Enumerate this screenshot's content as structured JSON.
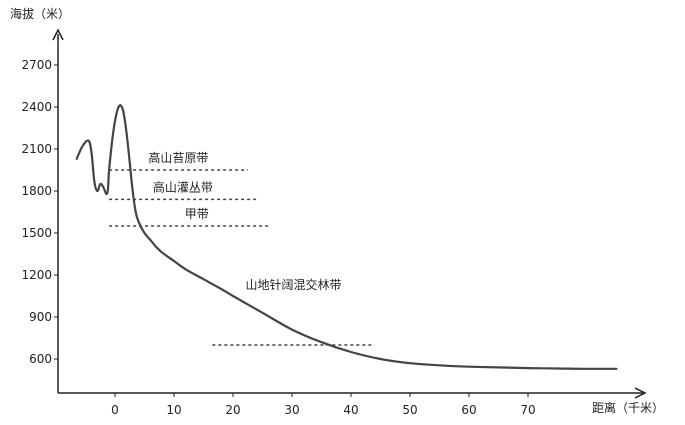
{
  "chart_data": {
    "type": "line",
    "title": "",
    "ylabel": "海拔（米）",
    "xlabel": "距离（千米）",
    "ylim": [
      350,
      3000
    ],
    "xlim": [
      -9,
      95
    ],
    "y_ticks": [
      600,
      900,
      1200,
      1500,
      1800,
      2100,
      2400,
      2700
    ],
    "x_ticks": [
      0,
      10,
      20,
      30,
      40,
      50,
      60,
      70
    ],
    "series": [
      {
        "x": [
          -6.5,
          -5.5,
          -4.5,
          -4,
          -3.5,
          -3,
          -2.5,
          -2,
          -1.5,
          -1.2,
          -1,
          -0.5,
          0,
          0.5,
          1,
          1.5,
          2,
          2.5,
          3,
          3.5,
          4,
          5,
          6,
          7,
          8,
          10,
          12,
          15,
          18,
          20,
          25,
          30,
          35,
          40,
          45,
          50,
          55,
          60,
          65,
          70,
          75,
          80,
          85
        ],
        "y": [
          2030,
          2120,
          2160,
          2080,
          1870,
          1800,
          1850,
          1830,
          1780,
          1810,
          1950,
          2150,
          2300,
          2390,
          2410,
          2350,
          2200,
          2000,
          1800,
          1650,
          1580,
          1500,
          1450,
          1400,
          1360,
          1300,
          1240,
          1170,
          1100,
          1050,
          930,
          810,
          720,
          650,
          600,
          570,
          555,
          545,
          540,
          535,
          532,
          530,
          530
        ]
      }
    ],
    "vegetation_belts": [
      {
        "label": "高山苔原带",
        "boundary_y": 1950,
        "line_x": [
          -1,
          22.5
        ]
      },
      {
        "label": "高山灌丛带",
        "boundary_y": 1740,
        "line_x": [
          -1,
          24
        ]
      },
      {
        "label": "甲带",
        "boundary_y": 1550,
        "line_x": [
          -1,
          26
        ]
      },
      {
        "label": "山地针阔混交林带",
        "boundary_y": 700,
        "line_x": [
          16.5,
          44
        ]
      }
    ],
    "colors": {
      "line": "#444444",
      "axis": "#222222",
      "dashed": "#444444"
    }
  }
}
